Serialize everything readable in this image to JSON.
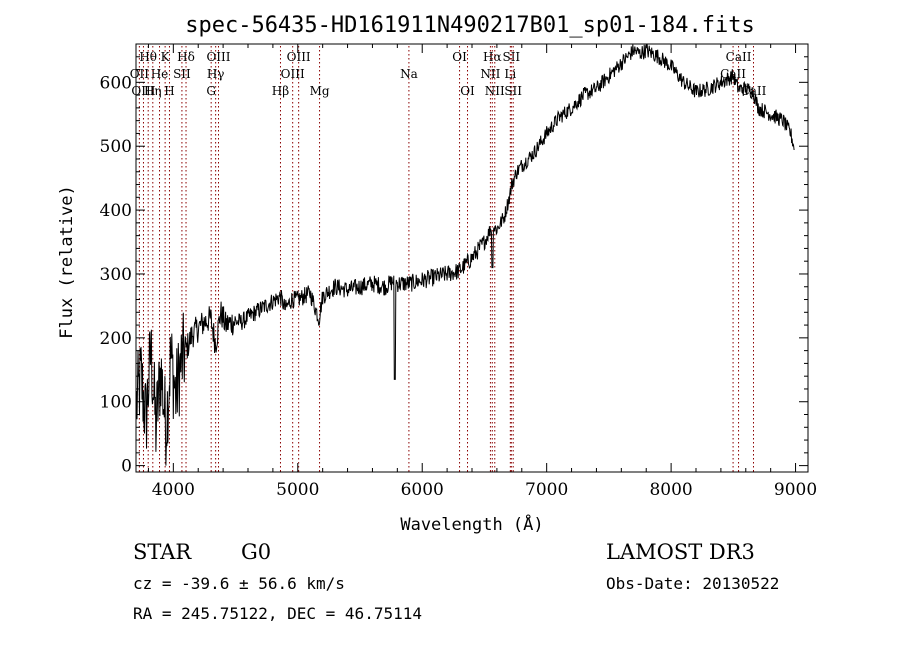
{
  "chart_data": {
    "type": "line",
    "title": "spec-56435-HD161911N490217B01_sp01-184.fits",
    "xlabel": "Wavelength (Å)",
    "ylabel": "Flux (relative)",
    "xlim": [
      3700,
      9100
    ],
    "ylim": [
      -10,
      660
    ],
    "xticks": [
      4000,
      5000,
      6000,
      7000,
      8000,
      9000
    ],
    "yticks": [
      0,
      100,
      200,
      300,
      400,
      500,
      600
    ],
    "grid": false,
    "series": [
      {
        "name": "flux",
        "x": [
          3700,
          3740,
          3780,
          3820,
          3860,
          3900,
          3940,
          3980,
          4020,
          4060,
          4100,
          4150,
          4200,
          4250,
          4300,
          4340,
          4380,
          4420,
          4480,
          4550,
          4620,
          4700,
          4780,
          4860,
          4900,
          4950,
          5000,
          5050,
          5100,
          5170,
          5200,
          5260,
          5300,
          5400,
          5500,
          5600,
          5700,
          5780,
          5800,
          5900,
          6000,
          6100,
          6200,
          6300,
          6400,
          6500,
          6560,
          6600,
          6660,
          6700,
          6720,
          6760,
          6800,
          6900,
          7000,
          7100,
          7200,
          7300,
          7400,
          7500,
          7600,
          7700,
          7750,
          7800,
          7900,
          8000,
          8100,
          8200,
          8300,
          8400,
          8500,
          8540,
          8600,
          8660,
          8700,
          8800,
          8900,
          8960,
          9000
        ],
        "y": [
          90,
          140,
          70,
          180,
          60,
          150,
          60,
          170,
          110,
          160,
          180,
          205,
          215,
          225,
          230,
          190,
          240,
          220,
          225,
          225,
          235,
          245,
          255,
          265,
          245,
          260,
          260,
          265,
          270,
          230,
          265,
          275,
          280,
          275,
          280,
          285,
          280,
          290,
          285,
          285,
          290,
          295,
          300,
          305,
          325,
          350,
          375,
          370,
          390,
          420,
          440,
          460,
          470,
          490,
          520,
          545,
          560,
          580,
          590,
          610,
          630,
          650,
          645,
          650,
          640,
          625,
          600,
          585,
          590,
          600,
          610,
          590,
          590,
          585,
          560,
          550,
          540,
          520,
          490
        ],
        "dips": [
          {
            "x": 5780,
            "y": 135
          },
          {
            "x": 5170,
            "y": 220
          },
          {
            "x": 6563,
            "y": 310
          }
        ]
      }
    ],
    "lines": [
      {
        "label": "Hθ",
        "x": 3798,
        "row": 1
      },
      {
        "label": "OII",
        "x": 3727,
        "row": 2
      },
      {
        "label": "OIII",
        "x": 3760,
        "row": 3
      },
      {
        "label": "K",
        "x": 3934,
        "row": 1
      },
      {
        "label": "He",
        "x": 3889,
        "row": 2
      },
      {
        "label": "Hη",
        "x": 3835,
        "row": 3
      },
      {
        "label": "SII",
        "x": 4069,
        "row": 2
      },
      {
        "label": "H",
        "x": 3969,
        "row": 3
      },
      {
        "label": "Hδ",
        "x": 4102,
        "row": 1
      },
      {
        "label": "OIII",
        "x": 4363,
        "row": 1
      },
      {
        "label": "Hγ",
        "x": 4340,
        "row": 2
      },
      {
        "label": "G",
        "x": 4304,
        "row": 3
      },
      {
        "label": "Hβ",
        "x": 4861,
        "row": 3
      },
      {
        "label": "OIII",
        "x": 5007,
        "row": 1
      },
      {
        "label": "OIII",
        "x": 4959,
        "row": 2
      },
      {
        "label": "Mg",
        "x": 5175,
        "row": 3
      },
      {
        "label": "Na",
        "x": 5893,
        "row": 2
      },
      {
        "label": "OI",
        "x": 6300,
        "row": 1
      },
      {
        "label": "OI",
        "x": 6364,
        "row": 3
      },
      {
        "label": "Hα",
        "x": 6563,
        "row": 1
      },
      {
        "label": "NII",
        "x": 6548,
        "row": 2
      },
      {
        "label": "NII",
        "x": 6583,
        "row": 3
      },
      {
        "label": "SII",
        "x": 6716,
        "row": 1
      },
      {
        "label": "Li",
        "x": 6708,
        "row": 2
      },
      {
        "label": "SII",
        "x": 6731,
        "row": 3
      },
      {
        "label": "CaII",
        "x": 8542,
        "row": 1
      },
      {
        "label": "CaII",
        "x": 8498,
        "row": 2
      },
      {
        "label": "CaII",
        "x": 8662,
        "row": 3
      }
    ]
  },
  "info": {
    "class_label": "STAR",
    "subclass": "G0",
    "survey": "LAMOST DR3",
    "cz": "cz = -39.6 ± 56.6 km/s",
    "obs_date": "Obs-Date: 20130522",
    "coords": "RA = 245.75122, DEC =  46.75114"
  },
  "colors": {
    "line_marker": "#8b0000",
    "spectrum": "#000000"
  }
}
